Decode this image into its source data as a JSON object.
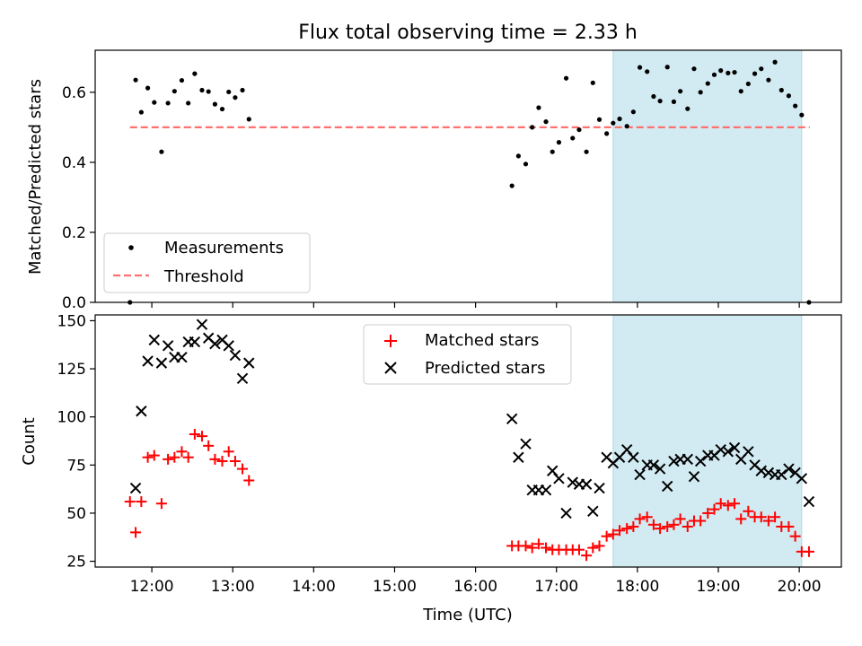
{
  "chart_data": {
    "title": "Flux total observing time = 2.33 h",
    "xlabel": "Time (UTC)",
    "x_ticks": [
      {
        "value": 12,
        "label": "12:00"
      },
      {
        "value": 13,
        "label": "13:00"
      },
      {
        "value": 14,
        "label": "14:00"
      },
      {
        "value": 15,
        "label": "15:00"
      },
      {
        "value": 16,
        "label": "16:00"
      },
      {
        "value": 17,
        "label": "17:00"
      },
      {
        "value": 18,
        "label": "18:00"
      },
      {
        "value": 19,
        "label": "19:00"
      },
      {
        "value": 20,
        "label": "20:00"
      }
    ],
    "xlim": [
      11.3,
      20.52
    ],
    "shaded_region": {
      "x_start": 17.7,
      "x_end": 20.03,
      "color": "#add8e6"
    },
    "panels": [
      {
        "type": "scatter",
        "ylabel": "Matched/Predicted stars",
        "ylim": [
          0,
          0.72
        ],
        "y_ticks": [
          0.0,
          0.2,
          0.4,
          0.6
        ],
        "legend_position": "lower-left",
        "threshold": {
          "name": "Threshold",
          "value": 0.5,
          "x_range": [
            11.73,
            20.13
          ],
          "color": "#ff7070"
        },
        "series": [
          {
            "name": "Measurements",
            "color": "#000000",
            "points": [
              [
                11.73,
                0.0
              ],
              [
                11.8,
                0.635
              ],
              [
                11.87,
                0.543
              ],
              [
                11.95,
                0.612
              ],
              [
                12.03,
                0.571
              ],
              [
                12.12,
                0.43
              ],
              [
                12.2,
                0.569
              ],
              [
                12.28,
                0.603
              ],
              [
                12.37,
                0.634
              ],
              [
                12.45,
                0.569
              ],
              [
                12.53,
                0.653
              ],
              [
                12.62,
                0.606
              ],
              [
                12.7,
                0.602
              ],
              [
                12.78,
                0.566
              ],
              [
                12.87,
                0.552
              ],
              [
                12.95,
                0.601
              ],
              [
                13.03,
                0.585
              ],
              [
                13.12,
                0.606
              ],
              [
                13.2,
                0.523
              ],
              [
                16.45,
                0.333
              ],
              [
                16.53,
                0.418
              ],
              [
                16.62,
                0.395
              ],
              [
                16.7,
                0.5
              ],
              [
                16.78,
                0.556
              ],
              [
                16.87,
                0.516
              ],
              [
                16.95,
                0.43
              ],
              [
                17.03,
                0.457
              ],
              [
                17.12,
                0.64
              ],
              [
                17.2,
                0.469
              ],
              [
                17.28,
                0.493
              ],
              [
                17.37,
                0.43
              ],
              [
                17.45,
                0.627
              ],
              [
                17.53,
                0.522
              ],
              [
                17.62,
                0.482
              ],
              [
                17.7,
                0.512
              ],
              [
                17.78,
                0.524
              ],
              [
                17.87,
                0.503
              ],
              [
                17.95,
                0.544
              ],
              [
                18.03,
                0.671
              ],
              [
                18.12,
                0.659
              ],
              [
                18.2,
                0.588
              ],
              [
                18.28,
                0.575
              ],
              [
                18.37,
                0.672
              ],
              [
                18.45,
                0.573
              ],
              [
                18.53,
                0.603
              ],
              [
                18.62,
                0.553
              ],
              [
                18.7,
                0.667
              ],
              [
                18.78,
                0.6
              ],
              [
                18.87,
                0.625
              ],
              [
                18.95,
                0.65
              ],
              [
                19.03,
                0.662
              ],
              [
                19.12,
                0.655
              ],
              [
                19.2,
                0.657
              ],
              [
                19.28,
                0.603
              ],
              [
                19.37,
                0.624
              ],
              [
                19.45,
                0.653
              ],
              [
                19.53,
                0.667
              ],
              [
                19.62,
                0.635
              ],
              [
                19.7,
                0.686
              ],
              [
                19.78,
                0.606
              ],
              [
                19.87,
                0.59
              ],
              [
                19.95,
                0.561
              ],
              [
                20.03,
                0.535
              ],
              [
                20.12,
                0.0
              ]
            ]
          }
        ]
      },
      {
        "type": "scatter",
        "ylabel": "Count",
        "ylim": [
          22,
          153
        ],
        "y_ticks": [
          25,
          50,
          75,
          100,
          125,
          150
        ],
        "legend_position": "upper-center",
        "series": [
          {
            "name": "Matched stars",
            "marker": "+",
            "color": "#ff0000",
            "points": [
              [
                11.73,
                56
              ],
              [
                11.8,
                40
              ],
              [
                11.87,
                56
              ],
              [
                11.95,
                79
              ],
              [
                12.03,
                80
              ],
              [
                12.12,
                55
              ],
              [
                12.2,
                78
              ],
              [
                12.28,
                79
              ],
              [
                12.37,
                82
              ],
              [
                12.45,
                79
              ],
              [
                12.53,
                91
              ],
              [
                12.62,
                90
              ],
              [
                12.7,
                85
              ],
              [
                12.78,
                78
              ],
              [
                12.87,
                77
              ],
              [
                12.95,
                82
              ],
              [
                13.03,
                77
              ],
              [
                13.12,
                73
              ],
              [
                13.2,
                67
              ],
              [
                16.45,
                33
              ],
              [
                16.53,
                33
              ],
              [
                16.62,
                33
              ],
              [
                16.7,
                32
              ],
              [
                16.78,
                34
              ],
              [
                16.87,
                32
              ],
              [
                16.95,
                31
              ],
              [
                17.03,
                31
              ],
              [
                17.12,
                31
              ],
              [
                17.2,
                31
              ],
              [
                17.28,
                31
              ],
              [
                17.37,
                28
              ],
              [
                17.45,
                32
              ],
              [
                17.53,
                33
              ],
              [
                17.62,
                38
              ],
              [
                17.7,
                39
              ],
              [
                17.78,
                41
              ],
              [
                17.87,
                42
              ],
              [
                17.95,
                43
              ],
              [
                18.03,
                47
              ],
              [
                18.12,
                48
              ],
              [
                18.2,
                44
              ],
              [
                18.28,
                42
              ],
              [
                18.37,
                43
              ],
              [
                18.45,
                44
              ],
              [
                18.53,
                47
              ],
              [
                18.62,
                43
              ],
              [
                18.7,
                46
              ],
              [
                18.78,
                46
              ],
              [
                18.87,
                50
              ],
              [
                18.95,
                52
              ],
              [
                19.03,
                55
              ],
              [
                19.12,
                54
              ],
              [
                19.2,
                55
              ],
              [
                19.28,
                47
              ],
              [
                19.37,
                51
              ],
              [
                19.45,
                48
              ],
              [
                19.53,
                48
              ],
              [
                19.62,
                46
              ],
              [
                19.7,
                48
              ],
              [
                19.78,
                43
              ],
              [
                19.87,
                43
              ],
              [
                19.95,
                38
              ],
              [
                20.03,
                30
              ],
              [
                20.12,
                30
              ]
            ]
          },
          {
            "name": "Predicted stars",
            "marker": "x",
            "color": "#000000",
            "points": [
              [
                11.8,
                63
              ],
              [
                11.87,
                103
              ],
              [
                11.95,
                129
              ],
              [
                12.03,
                140
              ],
              [
                12.12,
                128
              ],
              [
                12.2,
                137
              ],
              [
                12.28,
                131
              ],
              [
                12.37,
                131
              ],
              [
                12.45,
                139
              ],
              [
                12.53,
                139
              ],
              [
                12.62,
                148
              ],
              [
                12.7,
                141
              ],
              [
                12.78,
                138
              ],
              [
                12.87,
                140
              ],
              [
                12.95,
                137
              ],
              [
                13.03,
                132
              ],
              [
                13.12,
                120
              ],
              [
                13.2,
                128
              ],
              [
                16.45,
                99
              ],
              [
                16.53,
                79
              ],
              [
                16.62,
                86
              ],
              [
                16.7,
                62
              ],
              [
                16.78,
                62
              ],
              [
                16.87,
                62
              ],
              [
                16.95,
                72
              ],
              [
                17.03,
                68
              ],
              [
                17.12,
                50
              ],
              [
                17.2,
                66
              ],
              [
                17.28,
                65
              ],
              [
                17.37,
                65
              ],
              [
                17.45,
                51
              ],
              [
                17.53,
                63
              ],
              [
                17.62,
                79
              ],
              [
                17.7,
                76
              ],
              [
                17.78,
                79
              ],
              [
                17.87,
                83
              ],
              [
                17.95,
                79
              ],
              [
                18.03,
                70
              ],
              [
                18.12,
                75
              ],
              [
                18.2,
                75
              ],
              [
                18.28,
                73
              ],
              [
                18.37,
                64
              ],
              [
                18.45,
                77
              ],
              [
                18.53,
                78
              ],
              [
                18.62,
                78
              ],
              [
                18.7,
                69
              ],
              [
                18.78,
                77
              ],
              [
                18.87,
                80
              ],
              [
                18.95,
                80
              ],
              [
                19.03,
                83
              ],
              [
                19.12,
                82
              ],
              [
                19.2,
                84
              ],
              [
                19.28,
                78
              ],
              [
                19.37,
                82
              ],
              [
                19.45,
                75
              ],
              [
                19.53,
                72
              ],
              [
                19.62,
                71
              ],
              [
                19.7,
                70
              ],
              [
                19.78,
                70
              ],
              [
                19.87,
                73
              ],
              [
                19.95,
                71
              ],
              [
                20.03,
                68
              ],
              [
                20.12,
                56
              ]
            ]
          }
        ]
      }
    ]
  }
}
